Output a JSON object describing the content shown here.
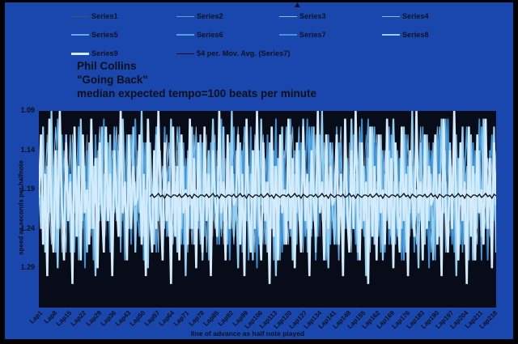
{
  "colors": {
    "frame": "#010204",
    "panel_background": "#1a47ad",
    "plot_background": "#080c18",
    "text": "#0a0f1c"
  },
  "marker": {
    "glyph": "▲",
    "name": "triangle-marker"
  },
  "title": {
    "lines": [
      "Phil Collins",
      "\"Going Back\"",
      "median expected tempo=100 beats per minute"
    ]
  },
  "chart_data": {
    "type": "line",
    "title": "Phil Collins \"Going Back\" median expected tempo=100 beats per minute",
    "xlabel": "line of advance as half note played",
    "ylabel": "speed as seconds per halfnote",
    "legend_position": "top",
    "grid": false,
    "x_count": 219,
    "x_tick_labels": [
      "Lap1",
      "Lap8",
      "Lap15",
      "Lap22",
      "Lap29",
      "Lap36",
      "Lap43",
      "Lap50",
      "Lap57",
      "Lap64",
      "Lap71",
      "Lap78",
      "Lap85",
      "Lap92",
      "Lap99",
      "Lap106",
      "Lap113",
      "Lap120",
      "Lap127",
      "Lap134",
      "Lap141",
      "Lap148",
      "Lap155",
      "Lap162",
      "Lap169",
      "Lap176",
      "Lap183",
      "Lap190",
      "Lap197",
      "Lap204",
      "Lap211",
      "Lap218"
    ],
    "x_tick_step": 7,
    "y_ticks": [
      1.09,
      1.14,
      1.19,
      1.24,
      1.29
    ],
    "y_range": [
      1.09,
      1.34
    ],
    "y_axis_note": "seconds per half note, values increase downward",
    "series": [
      {
        "name": "Series1",
        "color": "#44536e",
        "width": 1,
        "opacity": 1,
        "pattern": [
          1.19,
          1.22,
          1.16,
          1.21,
          1.24,
          1.18,
          1.15,
          1.22,
          1.19,
          1.23,
          1.17,
          1.2,
          1.15,
          1.23,
          1.18,
          1.25,
          1.16
        ]
      },
      {
        "name": "Series2",
        "color": "#b9d8f1",
        "width": 1,
        "opacity": 0.55,
        "pattern": [
          1.2,
          1.15,
          1.23,
          1.17,
          1.12,
          1.22,
          1.25,
          1.16,
          1.2,
          1.14,
          1.23,
          1.19,
          1.26,
          1.15,
          1.21,
          1.13,
          1.24,
          1.18,
          1.22
        ]
      },
      {
        "name": "Series3",
        "color": "#a6cfee",
        "width": 1,
        "opacity": 0.85,
        "pattern": [
          1.18,
          1.23,
          1.14,
          1.21,
          1.26,
          1.16,
          1.11,
          1.22,
          1.24,
          1.15,
          1.19,
          1.27,
          1.14,
          1.22,
          1.18,
          1.12,
          1.23,
          1.2,
          1.25,
          1.16,
          1.21,
          1.13,
          1.19
        ]
      },
      {
        "name": "Series4",
        "color": "#86bde8",
        "width": 1,
        "opacity": 1,
        "pattern": [
          1.21,
          1.16,
          1.24,
          1.18,
          1.13,
          1.22,
          1.26,
          1.17,
          1.11,
          1.2,
          1.24,
          1.15,
          1.19,
          1.27,
          1.16,
          1.22,
          1.12,
          1.25,
          1.18,
          1.21,
          1.14,
          1.23,
          1.17,
          1.26,
          1.13,
          1.2,
          1.24,
          1.16,
          1.19
        ]
      },
      {
        "name": "Series5",
        "color": "#62abe2",
        "width": 1.6,
        "opacity": 1,
        "pattern": [
          1.17,
          1.22,
          1.13,
          1.25,
          1.19,
          1.11,
          1.23,
          1.16,
          1.27,
          1.14,
          1.21,
          1.18,
          1.24,
          1.12,
          1.2,
          1.26,
          1.15,
          1.22,
          1.17,
          1.28,
          1.13,
          1.21,
          1.16,
          1.24,
          1.18,
          1.11,
          1.23,
          1.19,
          1.26,
          1.14,
          1.2
        ]
      },
      {
        "name": "Series6",
        "color": "#4f9fdc",
        "width": 1.6,
        "opacity": 1,
        "pattern": [
          1.2,
          1.14,
          1.24,
          1.17,
          1.28,
          1.12,
          1.21,
          1.25,
          1.16,
          1.1,
          1.22,
          1.18,
          1.26,
          1.13,
          1.2,
          1.24,
          1.15,
          1.27,
          1.17,
          1.11,
          1.23,
          1.19,
          1.25,
          1.14,
          1.21,
          1.16,
          1.28,
          1.12,
          1.2,
          1.23,
          1.17,
          1.26,
          1.13,
          1.22,
          1.18,
          1.24,
          1.15
        ]
      },
      {
        "name": "Series7",
        "color": "#3e92d6",
        "width": 1.8,
        "opacity": 1,
        "pattern": [
          1.19,
          1.23,
          1.13,
          1.26,
          1.17,
          1.1,
          1.22,
          1.25,
          1.15,
          1.28,
          1.18,
          1.12,
          1.21,
          1.24,
          1.16,
          1.27,
          1.13,
          1.2,
          1.23,
          1.11,
          1.25,
          1.17,
          1.29,
          1.14,
          1.21,
          1.18,
          1.24,
          1.12,
          1.26,
          1.16,
          1.22,
          1.1,
          1.23,
          1.19,
          1.27,
          1.15,
          1.21,
          1.13,
          1.25,
          1.18,
          1.2
        ]
      },
      {
        "name": "Series8",
        "color": "#93cff1",
        "width": 2.2,
        "opacity": 1,
        "pattern": [
          1.18,
          1.24,
          1.11,
          1.27,
          1.16,
          1.22,
          1.09,
          1.25,
          1.19,
          1.29,
          1.13,
          1.21,
          1.26,
          1.12,
          1.23,
          1.17,
          1.28,
          1.14,
          1.2,
          1.25,
          1.1,
          1.22,
          1.18,
          1.27,
          1.13,
          1.24,
          1.16,
          1.3,
          1.15,
          1.21,
          1.11,
          1.26,
          1.19,
          1.23,
          1.12,
          1.28,
          1.17,
          1.22,
          1.14,
          1.25,
          1.1,
          1.2,
          1.24
        ]
      },
      {
        "name": "Series9",
        "color": "#d3ebfa",
        "width": 2.6,
        "opacity": 1,
        "pattern": [
          1.2,
          1.12,
          1.26,
          1.17,
          1.3,
          1.1,
          1.22,
          1.27,
          1.14,
          1.24,
          1.09,
          1.21,
          1.28,
          1.13,
          1.23,
          1.18,
          1.31,
          1.11,
          1.25,
          1.16,
          1.28,
          1.12,
          1.22,
          1.19,
          1.26,
          1.1,
          1.24,
          1.15,
          1.29,
          1.13,
          1.21,
          1.27,
          1.11,
          1.23,
          1.17,
          1.3,
          1.14,
          1.2,
          1.25,
          1.09,
          1.22,
          1.18,
          1.28,
          1.12,
          1.24,
          1.16,
          1.21
        ]
      }
    ],
    "moving_average": {
      "name": "54 per. Mov. Avg. (Series7)",
      "color": "#070b12",
      "width": 1.3,
      "opacity": 1,
      "start_index": 53,
      "approx_level_seconds": 1.198,
      "pattern": [
        1.197,
        1.199,
        1.196,
        1.2,
        1.198,
        1.195,
        1.199,
        1.197,
        1.201,
        1.196,
        1.198,
        1.2,
        1.197
      ]
    }
  },
  "layout_labels": {
    "legend_name": "chart-legend",
    "plot_name": "plot-area"
  }
}
